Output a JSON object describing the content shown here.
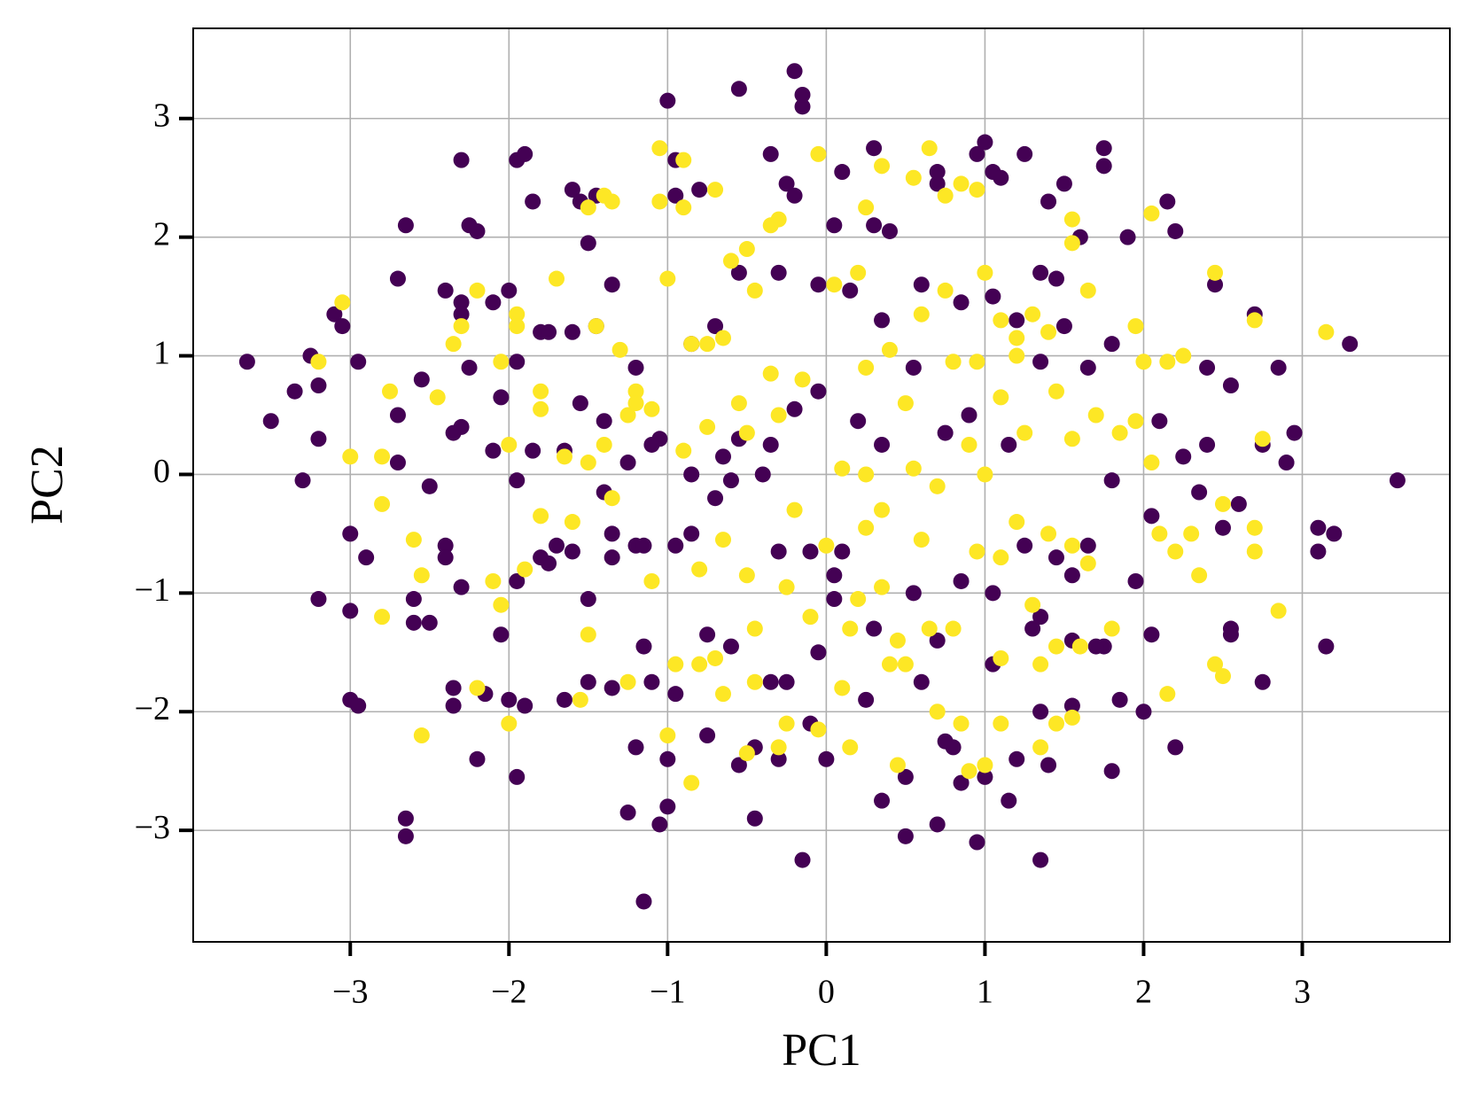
{
  "chart_data": {
    "type": "scatter",
    "xlabel": "PC1",
    "ylabel": "PC2",
    "xlim": [
      -3.99,
      3.93
    ],
    "ylim": [
      -3.94,
      3.76
    ],
    "xticks": [
      {
        "value": -3,
        "label": "−3"
      },
      {
        "value": -2,
        "label": "−2"
      },
      {
        "value": -1,
        "label": "−1"
      },
      0,
      1,
      2,
      3
    ],
    "yticks": [
      {
        "value": -3,
        "label": "−3"
      },
      {
        "value": -2,
        "label": "−2"
      },
      {
        "value": -1,
        "label": "−1"
      },
      0,
      1,
      2,
      3
    ],
    "grid": true,
    "series": [
      {
        "color": "#440154",
        "x": [
          -3.65,
          -3.5,
          -3.35,
          -3.25,
          -3.2,
          -3.2,
          -3.3,
          -3.2,
          -3.0,
          -2.95,
          -3.0,
          -3.0,
          -2.9,
          -2.95,
          -3.1,
          -3.05,
          -2.7,
          -2.65,
          -2.7,
          -2.7,
          -2.65,
          -2.65,
          -2.5,
          -2.4,
          -2.4,
          -2.35,
          -2.35,
          -2.3,
          -2.25,
          -2.2,
          -2.3,
          -2.3,
          -2.4,
          -2.35,
          -2.3,
          -2.25,
          -2.2,
          -2.15,
          -2.05,
          -2.0,
          -1.95,
          -1.9,
          -1.85,
          -1.8,
          -1.6,
          -1.55,
          -1.45,
          -1.35,
          -1.5,
          -1.2,
          -1.25,
          -1.15,
          -1.05,
          -1.0,
          -1.0,
          -1.0,
          -0.95,
          -0.8,
          -0.95,
          -0.55,
          -0.2,
          -0.15,
          -0.15,
          -0.35,
          -0.25,
          -0.2,
          0.05,
          0.1,
          0.3,
          0.3,
          0.4,
          0.7,
          0.7,
          1.0,
          0.95,
          1.05,
          1.1,
          1.25,
          1.4,
          1.5,
          1.75,
          1.75,
          2.15,
          2.2,
          1.45,
          1.35,
          1.6,
          1.9,
          2.45,
          2.7,
          3.3,
          2.85,
          2.55,
          2.95,
          2.75,
          2.9,
          3.6,
          3.1,
          3.2,
          3.1,
          3.15,
          2.75,
          2.55,
          2.55,
          2.5,
          2.2,
          2.0,
          1.85,
          1.8,
          1.55,
          1.4,
          1.35,
          1.35,
          1.15,
          1.2,
          0.95,
          1.0,
          0.85,
          0.7,
          0.5,
          0.5,
          0.35,
          -0.15,
          -0.45,
          -0.55,
          -0.3,
          0.0,
          -0.1,
          -1.95,
          -2.0,
          -1.9,
          -1.75,
          -1.8,
          -1.5,
          -1.35,
          -1.35,
          -1.2,
          -1.15,
          -0.95,
          -0.85,
          -0.7,
          -0.65,
          -0.55,
          -0.4,
          -0.3,
          -0.1,
          0.1,
          0.05,
          0.05,
          0.3,
          0.55,
          0.7,
          0.85,
          1.05,
          1.25,
          1.45,
          1.55,
          1.65,
          1.75,
          1.8,
          1.95,
          2.05,
          2.25,
          2.4,
          2.35,
          2.6,
          2.1,
          1.65,
          1.35,
          1.15,
          0.9,
          0.75,
          0.55,
          0.35,
          0.2,
          -0.05,
          -0.2,
          -0.35,
          -0.6,
          -0.85,
          -1.1,
          -1.25,
          -1.4,
          -1.7,
          -1.95,
          -2.1,
          -2.05,
          -1.85,
          -1.65,
          -1.55,
          -1.4,
          -1.2,
          -1.05,
          -0.85,
          -0.7,
          -0.55,
          -0.3,
          -0.05,
          0.15,
          0.35,
          0.6,
          0.85,
          1.05,
          1.2,
          1.5,
          1.8,
          2.4,
          -2.55,
          -2.1,
          -1.95,
          -1.75,
          -1.6,
          -1.45,
          -0.05,
          -0.35,
          -0.6,
          -0.75,
          -0.95,
          -1.1,
          -1.35,
          -1.5,
          -1.65,
          0.6,
          0.8,
          1.05,
          1.3,
          1.55,
          1.7,
          -2.6,
          -2.6,
          -2.5,
          -2.3,
          -1.95,
          -1.6,
          -0.75,
          -0.45,
          -0.25,
          0.25,
          0.75,
          1.35,
          2.05,
          -1.15
        ],
        "y": [
          0.95,
          0.45,
          0.7,
          1.0,
          0.75,
          0.3,
          -0.05,
          -1.05,
          -1.9,
          -1.95,
          -1.15,
          -0.5,
          -0.7,
          0.95,
          1.35,
          1.25,
          1.65,
          2.1,
          0.5,
          0.1,
          -2.9,
          -3.05,
          -0.1,
          -0.6,
          -0.7,
          -1.8,
          -1.95,
          2.65,
          2.1,
          2.05,
          1.45,
          1.35,
          1.55,
          0.35,
          0.4,
          0.9,
          -2.4,
          -1.85,
          -1.35,
          1.55,
          2.65,
          2.7,
          2.3,
          1.2,
          2.4,
          2.3,
          2.35,
          1.6,
          1.95,
          -2.3,
          -2.85,
          -3.6,
          -2.95,
          -2.8,
          -2.4,
          3.15,
          2.35,
          2.4,
          2.65,
          3.25,
          3.4,
          3.1,
          3.2,
          2.7,
          2.45,
          2.35,
          2.1,
          2.55,
          2.75,
          2.1,
          2.05,
          2.45,
          2.55,
          2.8,
          2.7,
          2.55,
          2.5,
          2.7,
          2.3,
          2.45,
          2.75,
          2.6,
          2.3,
          2.05,
          1.65,
          1.7,
          2.0,
          2.0,
          1.6,
          1.35,
          1.1,
          0.9,
          0.75,
          0.35,
          0.25,
          0.1,
          -0.05,
          -0.45,
          -0.5,
          -0.65,
          -1.45,
          -1.75,
          -1.3,
          -1.35,
          -0.45,
          -2.3,
          -2.0,
          -1.9,
          -2.5,
          -1.95,
          -2.45,
          -3.25,
          -2.0,
          -2.75,
          -2.4,
          -3.1,
          -2.55,
          -2.6,
          -2.95,
          -3.05,
          -2.55,
          -2.75,
          -3.25,
          -2.9,
          -2.45,
          -2.4,
          -2.4,
          -2.1,
          -2.55,
          -1.9,
          -1.95,
          -0.75,
          -0.7,
          -1.05,
          -0.5,
          -0.7,
          -0.6,
          -0.6,
          -0.6,
          -0.5,
          -0.2,
          0.15,
          0.3,
          0.0,
          -0.65,
          -0.65,
          -0.65,
          -0.85,
          -1.05,
          -1.3,
          -1.0,
          -1.4,
          -0.9,
          -1.0,
          -0.6,
          -0.7,
          -0.85,
          -0.6,
          -1.45,
          -0.05,
          -0.9,
          -0.35,
          0.15,
          0.25,
          -0.15,
          -0.25,
          0.45,
          0.9,
          0.95,
          0.25,
          0.5,
          0.35,
          0.9,
          0.25,
          0.45,
          0.7,
          0.55,
          0.25,
          -0.05,
          0.0,
          0.25,
          0.1,
          -0.15,
          -0.6,
          -0.05,
          0.2,
          0.65,
          0.2,
          0.2,
          0.6,
          0.45,
          0.9,
          0.3,
          1.1,
          1.25,
          1.7,
          1.7,
          1.6,
          1.55,
          1.3,
          1.6,
          1.45,
          1.5,
          1.3,
          1.25,
          1.1,
          0.9,
          0.8,
          1.45,
          0.95,
          1.2,
          1.2,
          1.25,
          -1.5,
          -1.75,
          -1.45,
          -1.35,
          -1.85,
          -1.75,
          -1.8,
          -1.75,
          -1.9,
          -1.75,
          -2.3,
          -1.6,
          -1.3,
          -1.4,
          -1.45,
          -1.05,
          -1.25,
          -1.25,
          -0.95,
          -0.9,
          -0.65,
          -2.2,
          -2.3,
          -1.75,
          -1.9,
          -2.25,
          -1.2,
          -1.35,
          -1.45
        ]
      },
      {
        "color": "#fde725",
        "x": [
          -3.05,
          -3.2,
          -3.0,
          -2.8,
          -2.8,
          -2.8,
          -2.75,
          -2.6,
          -2.55,
          -2.55,
          -2.45,
          -2.35,
          -2.3,
          -2.2,
          -2.2,
          -2.1,
          -2.05,
          -2.0,
          -2.05,
          -1.95,
          -1.95,
          -1.8,
          -1.8,
          -1.9,
          -1.8,
          -1.7,
          -1.65,
          -1.6,
          -1.5,
          -1.55,
          -1.5,
          -1.4,
          -1.35,
          -1.45,
          -1.3,
          -1.25,
          -1.2,
          -1.1,
          -1.05,
          -1.05,
          -1.0,
          -0.9,
          -0.9,
          -0.85,
          -0.75,
          -0.65,
          -0.6,
          -0.5,
          -0.45,
          -0.7,
          -0.35,
          -0.3,
          -0.05,
          0.05,
          0.2,
          0.25,
          0.35,
          0.55,
          0.65,
          0.75,
          0.85,
          0.95,
          1.0,
          1.1,
          1.2,
          1.3,
          1.4,
          1.55,
          1.55,
          1.65,
          2.05,
          1.95,
          2.0,
          2.15,
          2.25,
          2.45,
          2.7,
          3.15,
          2.75,
          2.7,
          2.7,
          2.5,
          2.35,
          2.3,
          2.2,
          2.1,
          2.85,
          2.45,
          2.5,
          2.15,
          1.8,
          1.55,
          1.45,
          1.45,
          1.35,
          1.3,
          1.1,
          1.0,
          0.9,
          0.8,
          0.7,
          0.5,
          0.4,
          0.35,
          0.15,
          0.1,
          -0.05,
          -0.25,
          -0.3,
          -0.5,
          -0.45,
          -0.5,
          -0.65,
          -0.8,
          -0.8,
          -0.85,
          -0.95,
          -1.0,
          -1.1,
          -0.5,
          -0.3,
          -0.15,
          0.1,
          0.25,
          0.35,
          0.5,
          0.55,
          0.7,
          0.8,
          0.9,
          1.0,
          1.1,
          1.25,
          1.45,
          1.55,
          1.7,
          1.85,
          1.95,
          2.05,
          1.55,
          1.65,
          1.4,
          1.2,
          1.1,
          0.95,
          0.6,
          0.25,
          0.0,
          -0.2,
          -0.35,
          -0.55,
          -0.75,
          -0.9,
          -1.2,
          -1.4,
          -1.35,
          -1.5,
          -2.0,
          0.25,
          0.4,
          0.6,
          0.75,
          1.2,
          0.95,
          -0.25,
          -0.1,
          0.2,
          0.45,
          0.65,
          1.1,
          1.35,
          -0.65,
          -0.45,
          0.15,
          0.45,
          0.85,
          1.6,
          -1.25,
          -0.7
        ],
        "y": [
          1.45,
          0.95,
          0.15,
          0.15,
          -0.25,
          -1.2,
          0.7,
          -0.55,
          -0.85,
          -2.2,
          0.65,
          1.1,
          1.25,
          1.55,
          -1.8,
          -0.9,
          -1.1,
          -2.1,
          0.95,
          1.35,
          1.25,
          0.7,
          0.55,
          -0.8,
          -0.35,
          1.65,
          0.15,
          -0.4,
          -1.35,
          -1.9,
          2.25,
          2.35,
          2.3,
          1.25,
          1.05,
          0.5,
          0.7,
          0.55,
          2.75,
          2.3,
          1.65,
          2.25,
          2.65,
          1.1,
          1.1,
          1.15,
          1.8,
          1.9,
          1.55,
          2.4,
          2.1,
          2.15,
          2.7,
          1.6,
          1.7,
          2.25,
          2.6,
          2.5,
          2.75,
          2.35,
          2.45,
          2.4,
          1.7,
          1.3,
          1.15,
          1.35,
          1.2,
          2.15,
          1.95,
          1.55,
          2.2,
          1.25,
          0.95,
          0.95,
          1.0,
          1.7,
          1.3,
          1.2,
          0.3,
          -0.45,
          -0.65,
          -0.25,
          -0.85,
          -0.5,
          -0.65,
          -0.5,
          -1.15,
          -1.6,
          -1.7,
          -1.85,
          -1.3,
          -2.05,
          -1.45,
          -2.1,
          -2.3,
          -1.1,
          -2.1,
          -2.45,
          -2.5,
          -1.3,
          -2.0,
          -1.6,
          -1.6,
          -0.95,
          -1.3,
          -1.8,
          -2.15,
          -2.1,
          -2.3,
          -2.35,
          -1.3,
          -0.85,
          -0.55,
          -0.8,
          -1.6,
          -2.6,
          -1.6,
          -2.2,
          -0.9,
          0.35,
          0.5,
          0.8,
          0.05,
          0.0,
          -0.3,
          0.6,
          0.05,
          -0.1,
          0.95,
          0.25,
          0.0,
          0.65,
          0.35,
          0.7,
          0.3,
          0.5,
          0.35,
          0.45,
          0.1,
          -0.6,
          -0.75,
          -0.5,
          -0.4,
          -0.7,
          -0.65,
          -0.55,
          -0.45,
          -0.6,
          -0.3,
          0.85,
          0.6,
          0.4,
          0.2,
          0.6,
          0.25,
          -0.2,
          0.1,
          0.25,
          0.9,
          1.05,
          1.35,
          1.55,
          1.0,
          0.95,
          -0.95,
          -1.2,
          -1.05,
          -1.4,
          -1.3,
          -1.55,
          -1.6,
          -1.85,
          -1.75,
          -2.3,
          -2.45,
          -2.1,
          -1.45,
          -1.75,
          -1.55
        ]
      }
    ]
  }
}
